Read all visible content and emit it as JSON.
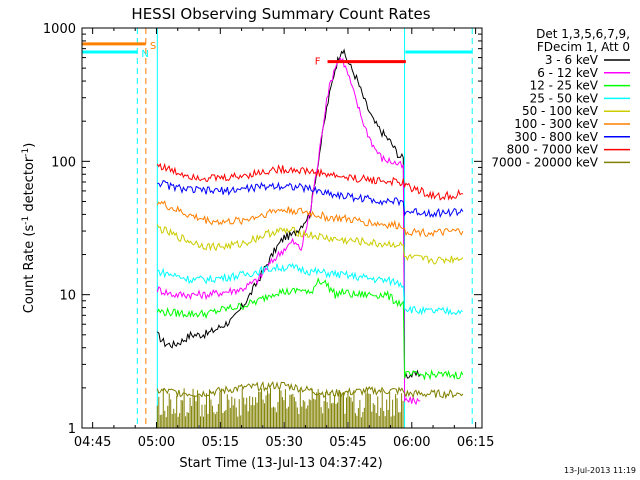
{
  "chart_data": {
    "type": "line",
    "title": "HESSI Observing Summary Count Rates",
    "xlabel": "Start Time (13-Jul-13 04:37:42)",
    "ylabel_parts": [
      "Count Rate (s",
      "-1",
      " detector",
      "-1",
      ")"
    ],
    "x_range_minutes": [
      282.5,
      376.5
    ],
    "y_range": [
      1,
      1000
    ],
    "y_scale": "log",
    "x_ticks": [
      {
        "t": 285,
        "label": "04:45"
      },
      {
        "t": 300,
        "label": "05:00"
      },
      {
        "t": 315,
        "label": "05:15"
      },
      {
        "t": 330,
        "label": "05:30"
      },
      {
        "t": 345,
        "label": "05:45"
      },
      {
        "t": 360,
        "label": "06:00"
      },
      {
        "t": 375,
        "label": "06:15"
      }
    ],
    "y_ticks": [
      {
        "v": 1,
        "label": "1"
      },
      {
        "v": 10,
        "label": "10"
      },
      {
        "v": 100,
        "label": "100"
      },
      {
        "v": 1000,
        "label": "1000"
      }
    ],
    "legend_header": [
      "Det 1,3,5,6,7,9,",
      "FDecim 1, Att 0"
    ],
    "legend_position": "right",
    "series": [
      {
        "name": "3 - 6 keV",
        "color": "#000000",
        "points": [
          [
            300.2,
            5
          ],
          [
            302,
            4.3
          ],
          [
            304,
            4.2
          ],
          [
            306,
            4.5
          ],
          [
            308,
            5
          ],
          [
            310,
            5
          ],
          [
            312,
            5.1
          ],
          [
            314,
            5.5
          ],
          [
            316,
            6
          ],
          [
            318,
            6.5
          ],
          [
            320,
            8
          ],
          [
            322,
            10
          ],
          [
            324,
            13
          ],
          [
            326,
            17
          ],
          [
            328,
            22
          ],
          [
            330,
            27
          ],
          [
            332,
            28
          ],
          [
            334,
            33
          ],
          [
            336,
            40
          ],
          [
            338,
            100
          ],
          [
            340,
            250
          ],
          [
            342,
            500
          ],
          [
            343.5,
            700
          ],
          [
            345,
            560
          ],
          [
            347,
            420
          ],
          [
            349,
            280
          ],
          [
            351,
            200
          ],
          [
            353,
            165
          ],
          [
            355,
            140
          ],
          [
            357,
            110
          ],
          [
            358,
            105
          ],
          [
            358.3,
            2.5
          ],
          [
            360,
            2.5
          ],
          [
            362,
            2.5
          ]
        ]
      },
      {
        "name": "6 - 12 keV",
        "color": "#ff00ff",
        "points": [
          [
            300.2,
            11
          ],
          [
            304,
            10
          ],
          [
            308,
            10
          ],
          [
            312,
            10
          ],
          [
            316,
            10.5
          ],
          [
            320,
            11
          ],
          [
            324,
            13
          ],
          [
            326,
            16
          ],
          [
            328,
            19
          ],
          [
            330,
            22
          ],
          [
            332,
            25
          ],
          [
            334,
            22
          ],
          [
            336,
            40
          ],
          [
            338,
            100
          ],
          [
            340,
            300
          ],
          [
            342,
            520
          ],
          [
            343.5,
            600
          ],
          [
            345,
            450
          ],
          [
            347,
            280
          ],
          [
            349,
            180
          ],
          [
            351,
            130
          ],
          [
            353,
            105
          ],
          [
            355,
            100
          ],
          [
            357,
            95
          ],
          [
            358,
            90
          ],
          [
            358.3,
            1.6
          ],
          [
            362,
            1.6
          ]
        ]
      },
      {
        "name": "12 - 25 keV",
        "color": "#00ff00",
        "points": [
          [
            300.2,
            7.5
          ],
          [
            304,
            7.3
          ],
          [
            308,
            7.2
          ],
          [
            312,
            7.2
          ],
          [
            316,
            7.8
          ],
          [
            320,
            8.2
          ],
          [
            324,
            9
          ],
          [
            328,
            10.5
          ],
          [
            332,
            10.5
          ],
          [
            334,
            11
          ],
          [
            336,
            10
          ],
          [
            338,
            13
          ],
          [
            340,
            12
          ],
          [
            342,
            10
          ],
          [
            344,
            10.5
          ],
          [
            346,
            10
          ],
          [
            348,
            10
          ],
          [
            350,
            10
          ],
          [
            352,
            10
          ],
          [
            354,
            10
          ],
          [
            356,
            9
          ],
          [
            358,
            8.5
          ],
          [
            358.3,
            2.5
          ],
          [
            372,
            2.5
          ]
        ]
      },
      {
        "name": "25 - 50 keV",
        "color": "#00ffff",
        "points": [
          [
            300.2,
            15
          ],
          [
            304,
            14
          ],
          [
            308,
            13
          ],
          [
            312,
            13
          ],
          [
            316,
            13.5
          ],
          [
            320,
            14
          ],
          [
            324,
            15
          ],
          [
            328,
            16
          ],
          [
            332,
            16
          ],
          [
            336,
            15
          ],
          [
            340,
            14.5
          ],
          [
            344,
            14
          ],
          [
            348,
            13.5
          ],
          [
            352,
            13
          ],
          [
            356,
            12.5
          ],
          [
            358,
            12
          ],
          [
            358.3,
            8
          ],
          [
            362,
            7.5
          ],
          [
            366,
            7.5
          ],
          [
            372,
            7.5
          ]
        ]
      },
      {
        "name": "50 - 100 keV",
        "color": "#cccc00",
        "points": [
          [
            300.2,
            32
          ],
          [
            304,
            28
          ],
          [
            308,
            25
          ],
          [
            312,
            23
          ],
          [
            316,
            23
          ],
          [
            320,
            24
          ],
          [
            324,
            27
          ],
          [
            328,
            30
          ],
          [
            332,
            30
          ],
          [
            336,
            28
          ],
          [
            340,
            26.5
          ],
          [
            344,
            25.5
          ],
          [
            348,
            25
          ],
          [
            352,
            24
          ],
          [
            356,
            24
          ],
          [
            358,
            23
          ],
          [
            358.3,
            19
          ],
          [
            366,
            18
          ],
          [
            372,
            19
          ]
        ]
      },
      {
        "name": "100 - 300 keV",
        "color": "#ff7f00",
        "points": [
          [
            300.2,
            50
          ],
          [
            304,
            44
          ],
          [
            308,
            39
          ],
          [
            312,
            36
          ],
          [
            316,
            35
          ],
          [
            320,
            36
          ],
          [
            324,
            39
          ],
          [
            328,
            43
          ],
          [
            332,
            43
          ],
          [
            336,
            41
          ],
          [
            340,
            38
          ],
          [
            344,
            37
          ],
          [
            348,
            35.5
          ],
          [
            352,
            34
          ],
          [
            356,
            33
          ],
          [
            358,
            33
          ],
          [
            358.3,
            30
          ],
          [
            366,
            29
          ],
          [
            372,
            30
          ]
        ]
      },
      {
        "name": "300 - 800 keV",
        "color": "#0000ff",
        "points": [
          [
            300.2,
            70
          ],
          [
            304,
            64
          ],
          [
            308,
            61
          ],
          [
            312,
            60
          ],
          [
            316,
            60
          ],
          [
            320,
            62
          ],
          [
            324,
            64
          ],
          [
            328,
            66
          ],
          [
            332,
            65
          ],
          [
            336,
            62
          ],
          [
            340,
            58
          ],
          [
            344,
            55
          ],
          [
            348,
            53
          ],
          [
            352,
            51
          ],
          [
            356,
            50
          ],
          [
            358,
            49
          ],
          [
            358.3,
            42
          ],
          [
            366,
            41
          ],
          [
            372,
            42
          ]
        ]
      },
      {
        "name": "800 - 7000 keV",
        "color": "#ff0000",
        "points": [
          [
            300.2,
            95
          ],
          [
            304,
            84
          ],
          [
            308,
            78
          ],
          [
            312,
            75
          ],
          [
            316,
            75
          ],
          [
            320,
            78
          ],
          [
            324,
            82
          ],
          [
            328,
            87
          ],
          [
            332,
            87
          ],
          [
            336,
            84
          ],
          [
            340,
            80
          ],
          [
            344,
            76
          ],
          [
            348,
            74
          ],
          [
            352,
            72
          ],
          [
            356,
            70
          ],
          [
            358,
            69
          ],
          [
            358.3,
            66
          ],
          [
            366,
            54
          ],
          [
            372,
            57
          ]
        ]
      },
      {
        "name": "7000 - 20000 keV",
        "color": "#808000",
        "points": [
          [
            300.2,
            1.9
          ],
          [
            310,
            1.8
          ],
          [
            320,
            2.0
          ],
          [
            330,
            2.1
          ],
          [
            340,
            1.8
          ],
          [
            350,
            1.9
          ],
          [
            358,
            1.9
          ],
          [
            358.3,
            1.8
          ],
          [
            372,
            1.8
          ]
        ]
      }
    ],
    "flags": [
      {
        "label": "S",
        "color": "#ff7f00",
        "t0": 282.5,
        "t1": 297.5,
        "v": 760
      },
      {
        "label": "N",
        "color": "#00ffff",
        "t0": 282.5,
        "t1": 295.5,
        "v": 660
      },
      {
        "label": "F",
        "color": "#ff0000",
        "t0": 340.2,
        "t1": 358.6,
        "v": 560
      }
    ],
    "night_lines": [
      {
        "t": 295.5,
        "color": "#00ffff",
        "dashed": true
      },
      {
        "t": 297.5,
        "color": "#ff7f00",
        "dashed": true
      },
      {
        "t": 300.2,
        "color": "#00ffff",
        "dashed": false
      },
      {
        "t": 358.3,
        "color": "#00ffff",
        "dashed": false
      },
      {
        "t": 374.2,
        "color": "#00ffff",
        "dashed": true
      }
    ],
    "saa_line": {
      "t0": 358.5,
      "t1": 374.2,
      "v": 660,
      "color": "#00ffff"
    }
  },
  "timestamp": "13-Jul-2013 11:19"
}
